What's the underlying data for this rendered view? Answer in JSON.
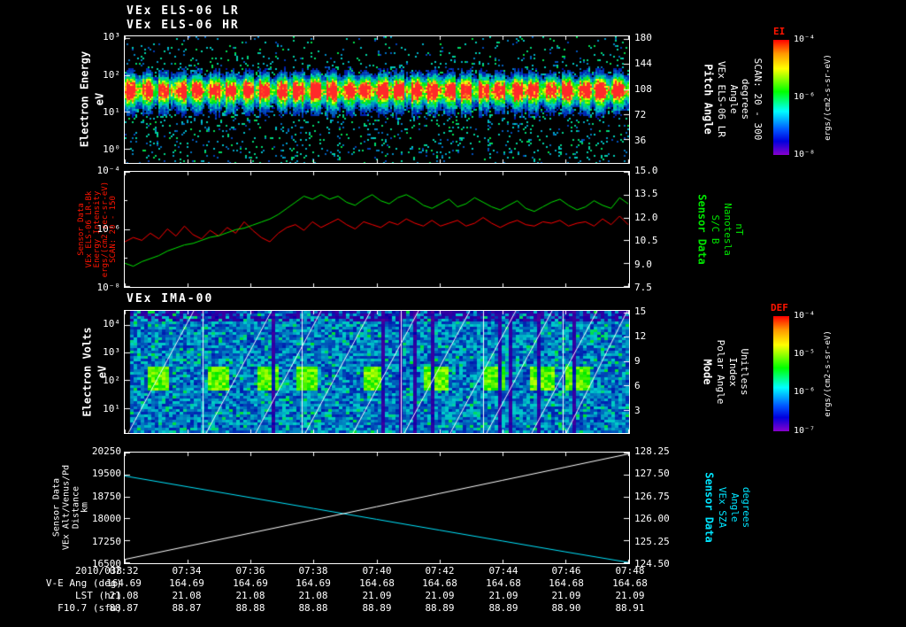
{
  "titles": {
    "line1": "VEx ELS-06 LR",
    "line2": "VEx ELS-06 HR",
    "panel3": "VEx IMA-00"
  },
  "panel1": {
    "ylabel_main": "Electron Energy",
    "ylabel_units": "eV",
    "yticks": [
      "10³",
      "10²",
      "10¹",
      "10⁰"
    ],
    "right_ticks": [
      "180",
      "144",
      "108",
      "72",
      "36"
    ],
    "right_labels": [
      "Pitch Angle",
      "VEx ELS-06 LR",
      "Angle",
      "degrees",
      "SCAN: 20 - 300"
    ],
    "colorbar_title": "EI",
    "colorbar_ticks": [
      "10⁻⁴",
      "10⁻⁶",
      "10⁻⁸"
    ],
    "colorbar_units": "ergs/(cm2-s-sr-eV)"
  },
  "panel2": {
    "left_labels": [
      "Sensor Data",
      "VEx ELS-06 LR-Bk",
      "Energy Intensity",
      "ergs/(cm2-sec-sr-eV)",
      "SCAN: 20 - 150"
    ],
    "yticks": [
      "10⁻⁴",
      "10⁻⁶",
      "10⁻⁸"
    ],
    "right_ticks": [
      "15.0",
      "13.5",
      "12.0",
      "10.5",
      "9.0",
      "7.5"
    ],
    "right_labels": [
      "Sensor Data",
      "S/C B",
      "Nanotesla",
      "nT"
    ]
  },
  "panel3": {
    "ylabel_main": "Electron Volts",
    "ylabel_units": "eV",
    "yticks": [
      "10⁴",
      "10³",
      "10²",
      "10¹"
    ],
    "right_ticks": [
      "15",
      "12",
      "9",
      "6",
      "3"
    ],
    "right_labels": [
      "Mode",
      "Polar Angle",
      "Index",
      "Unitless"
    ],
    "colorbar_title": "DEF",
    "colorbar_ticks": [
      "10⁻⁴",
      "10⁻⁵",
      "10⁻⁶",
      "10⁻⁷"
    ],
    "colorbar_units": "ergs/(cm2-s-sr-eV)"
  },
  "panel4": {
    "left_labels": [
      "Sensor Data",
      "VEx Alt/Venus/Pd",
      "Distance",
      "km"
    ],
    "yticks": [
      "20250",
      "19500",
      "18750",
      "18000",
      "17250",
      "16500"
    ],
    "right_ticks": [
      "128.25",
      "127.50",
      "126.75",
      "126.00",
      "125.25",
      "124.50"
    ],
    "right_labels": [
      "Sensor Data",
      "VEx SZA",
      "Angle",
      "degrees"
    ]
  },
  "time_axis": {
    "date": "2010/038",
    "ticks": [
      "07:32",
      "07:34",
      "07:36",
      "07:38",
      "07:40",
      "07:42",
      "07:44",
      "07:46",
      "07:48"
    ]
  },
  "bottom_rows": [
    {
      "label": "V-E Ang (deg)",
      "values": [
        "164.69",
        "164.69",
        "164.69",
        "164.69",
        "164.68",
        "164.68",
        "164.68",
        "164.68",
        "164.68"
      ]
    },
    {
      "label": "LST (hr)",
      "values": [
        "21.08",
        "21.08",
        "21.08",
        "21.08",
        "21.09",
        "21.09",
        "21.09",
        "21.09",
        "21.09"
      ]
    },
    {
      "label": "F10.7 (sfu)",
      "values": [
        "88.87",
        "88.87",
        "88.88",
        "88.88",
        "88.89",
        "88.89",
        "88.89",
        "88.90",
        "88.91"
      ]
    }
  ],
  "colors": {
    "axis": "#ffffff",
    "red_trace": "#ff0000",
    "green_trace": "#00e600",
    "cyan_trace": "#00e5ff",
    "background": "#000000"
  },
  "chart_data": [
    {
      "type": "heatmap",
      "title": "VEx ELS-06 LR / VEx ELS-06 HR electron spectrogram",
      "ylabel": "Electron Energy (eV)",
      "y_ticks_log10": [
        3,
        2,
        1,
        0
      ],
      "x_range": [
        "07:32",
        "07:48"
      ],
      "right_axis": {
        "label": "Pitch Angle VEx ELS-06 LR Angle (degrees)",
        "ticks": [
          180,
          144,
          108,
          72,
          36
        ],
        "note": "SCAN: 20 - 300"
      },
      "colorbar": {
        "label": "EI",
        "ticks_log10": [
          -4,
          -6,
          -8
        ],
        "units": "ergs/(cm2-s-sr-eV)"
      },
      "features": "Bright yellow-green band near 10-100 eV across whole interval, periodic vertical sweep stripes (~30), sparse cyan counts above and below band on black background"
    },
    {
      "type": "line",
      "x_ticks": [
        "07:32",
        "07:34",
        "07:36",
        "07:38",
        "07:40",
        "07:42",
        "07:44",
        "07:46",
        "07:48"
      ],
      "left_axis": {
        "label": "VEx ELS-06 LR-Bk Energy Intensity",
        "units": "ergs/(cm2-sec-sr-eV)",
        "range_log10": [
          -8,
          -4
        ]
      },
      "right_axis": {
        "label": "S/C B Nanotesla",
        "units": "nT",
        "range": [
          7.5,
          15.0
        ]
      },
      "series": [
        {
          "name": "Energy Intensity",
          "color": "#ff0000",
          "scale": "log10",
          "values": [
            -6.45,
            -6.3,
            -6.4,
            -6.15,
            -6.35,
            -6.0,
            -6.25,
            -5.9,
            -6.2,
            -6.35,
            -6.05,
            -6.25,
            -5.95,
            -6.15,
            -5.75,
            -6.05,
            -6.3,
            -6.45,
            -6.15,
            -5.95,
            -5.85,
            -6.05,
            -5.75,
            -5.95,
            -5.8,
            -5.65,
            -5.85,
            -6.0,
            -5.75,
            -5.85,
            -5.95,
            -5.75,
            -5.85,
            -5.65,
            -5.8,
            -5.9,
            -5.7,
            -5.9,
            -5.8,
            -5.7,
            -5.9,
            -5.8,
            -5.6,
            -5.8,
            -5.95,
            -5.8,
            -5.7,
            -5.85,
            -5.9,
            -5.75,
            -5.8,
            -5.7,
            -5.9,
            -5.8,
            -5.75,
            -5.9,
            -5.65,
            -5.85,
            -5.55,
            -5.85
          ]
        },
        {
          "name": "S/C B",
          "color": "#00e600",
          "scale": "linear",
          "values": [
            9.0,
            8.8,
            9.1,
            9.3,
            9.5,
            9.8,
            10.0,
            10.2,
            10.3,
            10.5,
            10.7,
            10.8,
            11.0,
            11.2,
            11.3,
            11.5,
            11.7,
            11.9,
            12.2,
            12.6,
            13.0,
            13.4,
            13.2,
            13.5,
            13.2,
            13.4,
            13.0,
            12.8,
            13.2,
            13.5,
            13.1,
            12.9,
            13.3,
            13.5,
            13.2,
            12.8,
            12.6,
            12.9,
            13.2,
            12.7,
            12.9,
            13.3,
            13.0,
            12.7,
            12.5,
            12.8,
            13.1,
            12.6,
            12.4,
            12.7,
            13.0,
            13.2,
            12.8,
            12.5,
            12.7,
            13.1,
            12.8,
            12.6,
            13.3,
            12.9
          ]
        }
      ]
    },
    {
      "type": "heatmap",
      "title": "VEx IMA-00 ion spectrogram",
      "ylabel": "Electron Volts (eV)",
      "y_ticks_log10": [
        4,
        3,
        2,
        1
      ],
      "x_range": [
        "07:32",
        "07:48"
      ],
      "right_axis": {
        "label": "Mode / Polar Angle / Index (Unitless)",
        "ticks": [
          15,
          12,
          9,
          6,
          3
        ]
      },
      "colorbar": {
        "label": "DEF",
        "ticks_log10": [
          -4,
          -5,
          -6,
          -7
        ],
        "units": "ergs/(cm2-s-sr-eV)"
      },
      "features": "Blocky blue background counts, bright green blobs near a few hundred eV, white diagonal energy-sweep traces, white vertical segment boundaries"
    },
    {
      "type": "line",
      "x_ticks": [
        "07:32",
        "07:34",
        "07:36",
        "07:38",
        "07:40",
        "07:42",
        "07:44",
        "07:46",
        "07:48"
      ],
      "left_axis": {
        "label": "VEx Alt/Venus/Pd Distance",
        "units": "km",
        "range": [
          16500,
          20250
        ]
      },
      "right_axis": {
        "label": "VEx SZA Angle",
        "units": "degrees",
        "range": [
          124.5,
          128.25
        ]
      },
      "series": [
        {
          "name": "VEx Alt/Venus/Pd Distance (km)",
          "color": "#ffffff",
          "axis": "left",
          "values": [
            16600,
            17050,
            17500,
            17950,
            18400,
            18850,
            19300,
            19750,
            20200
          ]
        },
        {
          "name": "VEx SZA (degrees)",
          "color": "#00e5ff",
          "axis": "right",
          "values": [
            127.45,
            127.08,
            126.71,
            126.34,
            125.97,
            125.6,
            125.23,
            124.86,
            124.5
          ]
        }
      ]
    }
  ]
}
